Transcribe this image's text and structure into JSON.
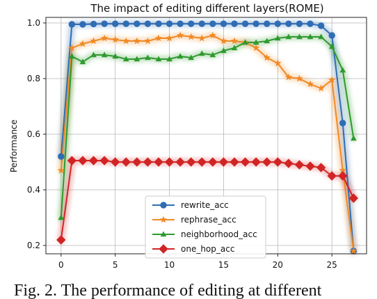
{
  "chart_data": {
    "type": "line",
    "title": "The impact of editing different layers(ROME)",
    "xlabel": "",
    "ylabel": "Performance",
    "xlim": [
      -1.4,
      28.2
    ],
    "ylim": [
      0.17,
      1.02
    ],
    "xticks": [
      0,
      5,
      10,
      15,
      20,
      25
    ],
    "yticks": [
      0.2,
      0.4,
      0.6,
      0.8,
      1.0
    ],
    "ytick_labels": [
      "0.2",
      "0.4",
      "0.6",
      "0.8",
      "1.0"
    ],
    "grid": true,
    "legend_position": "lower-center",
    "series": [
      {
        "name": "rewrite_acc",
        "color": "#2f6db4",
        "marker": "circle",
        "x": [
          0,
          1,
          2,
          3,
          4,
          5,
          6,
          7,
          8,
          9,
          10,
          11,
          12,
          13,
          14,
          15,
          16,
          17,
          18,
          19,
          20,
          21,
          22,
          23,
          24,
          25,
          26,
          27
        ],
        "y": [
          0.52,
          0.995,
          0.995,
          0.996,
          0.997,
          0.997,
          0.997,
          0.997,
          0.997,
          0.997,
          0.997,
          0.997,
          0.997,
          0.997,
          0.997,
          0.997,
          0.997,
          0.997,
          0.997,
          0.997,
          0.997,
          0.997,
          0.997,
          0.997,
          0.99,
          0.955,
          0.64,
          0.18
        ]
      },
      {
        "name": "rephrase_acc",
        "color": "#f08a25",
        "marker": "star",
        "x": [
          0,
          1,
          2,
          3,
          4,
          5,
          6,
          7,
          8,
          9,
          10,
          11,
          12,
          13,
          14,
          15,
          16,
          17,
          18,
          19,
          20,
          21,
          22,
          23,
          24,
          25,
          26,
          27
        ],
        "y": [
          0.47,
          0.91,
          0.925,
          0.935,
          0.945,
          0.94,
          0.935,
          0.935,
          0.935,
          0.945,
          0.945,
          0.955,
          0.95,
          0.945,
          0.955,
          0.935,
          0.935,
          0.93,
          0.91,
          0.875,
          0.855,
          0.805,
          0.8,
          0.78,
          0.765,
          0.795,
          0.47,
          0.18
        ]
      },
      {
        "name": "neighborhood_acc",
        "color": "#2e9a2e",
        "marker": "triangle",
        "x": [
          0,
          1,
          2,
          3,
          4,
          5,
          6,
          7,
          8,
          9,
          10,
          11,
          12,
          13,
          14,
          15,
          16,
          17,
          18,
          19,
          20,
          21,
          22,
          23,
          24,
          25,
          26,
          27
        ],
        "y": [
          0.3,
          0.88,
          0.86,
          0.885,
          0.885,
          0.88,
          0.87,
          0.87,
          0.875,
          0.87,
          0.87,
          0.88,
          0.875,
          0.89,
          0.885,
          0.9,
          0.91,
          0.93,
          0.93,
          0.935,
          0.945,
          0.95,
          0.95,
          0.95,
          0.95,
          0.915,
          0.83,
          0.585
        ]
      },
      {
        "name": "one_hop_acc",
        "color": "#d22424",
        "marker": "diamond",
        "x": [
          0,
          1,
          2,
          3,
          4,
          5,
          6,
          7,
          8,
          9,
          10,
          11,
          12,
          13,
          14,
          15,
          16,
          17,
          18,
          19,
          20,
          21,
          22,
          23,
          24,
          25,
          26,
          27
        ],
        "y": [
          0.22,
          0.505,
          0.505,
          0.505,
          0.505,
          0.5,
          0.5,
          0.5,
          0.5,
          0.5,
          0.5,
          0.5,
          0.5,
          0.5,
          0.5,
          0.5,
          0.5,
          0.5,
          0.5,
          0.5,
          0.5,
          0.495,
          0.49,
          0.485,
          0.48,
          0.45,
          0.45,
          0.37
        ]
      }
    ]
  },
  "caption": "Fig. 2. The performance of editing at different"
}
